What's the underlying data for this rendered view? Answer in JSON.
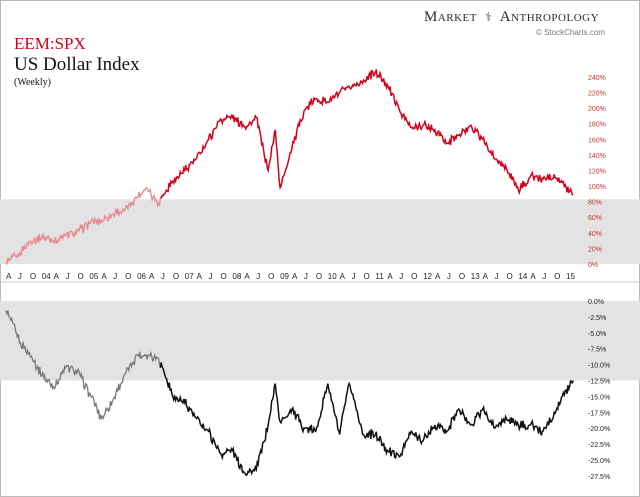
{
  "header": {
    "brand_left": "Market",
    "brand_glyph": "⚕",
    "brand_right": "Anthropology",
    "credit": "© StockCharts.com"
  },
  "chart_data": [
    {
      "type": "line",
      "title": "EEM:SPX",
      "subtitle": "US Dollar Index",
      "note": "(Weekly)",
      "color_recent": "#d0021b",
      "color_early": "#e8888f",
      "y_axis_side": "right",
      "ylim": [
        0,
        245
      ],
      "yticks": [
        0,
        20,
        40,
        60,
        80,
        100,
        120,
        140,
        160,
        180,
        200,
        220,
        240
      ],
      "ytick_labels": [
        "0%",
        "20%",
        "40%",
        "60%",
        "80%",
        "100%",
        "120%",
        "140%",
        "160%",
        "180%",
        "200%",
        "220%",
        "240%"
      ],
      "shaded_range": [
        0,
        83
      ],
      "x": [
        2003.25,
        2003.5,
        2003.75,
        2004.0,
        2004.25,
        2004.5,
        2004.75,
        2005.0,
        2005.25,
        2005.5,
        2005.75,
        2006.0,
        2006.2,
        2006.45,
        2006.55,
        2006.75,
        2007.0,
        2007.25,
        2007.5,
        2007.75,
        2008.0,
        2008.3,
        2008.5,
        2008.75,
        2008.9,
        2009.0,
        2009.25,
        2009.5,
        2009.75,
        2010.0,
        2010.25,
        2010.5,
        2010.75,
        2011.0,
        2011.25,
        2011.5,
        2011.75,
        2012.0,
        2012.25,
        2012.5,
        2012.75,
        2013.0,
        2013.25,
        2013.5,
        2013.75,
        2014.0,
        2014.25,
        2014.5,
        2014.75,
        2015.0,
        2015.15
      ],
      "y": [
        2,
        12,
        28,
        36,
        30,
        36,
        42,
        52,
        56,
        64,
        70,
        86,
        98,
        78,
        88,
        106,
        120,
        136,
        160,
        186,
        188,
        176,
        188,
        120,
        172,
        98,
        150,
        196,
        212,
        208,
        220,
        226,
        236,
        246,
        230,
        198,
        175,
        178,
        172,
        155,
        165,
        178,
        160,
        135,
        122,
        95,
        112,
        110,
        115,
        99,
        89
      ]
    },
    {
      "type": "line",
      "title": "US Dollar Index",
      "color_recent": "#111111",
      "color_early": "#7a7a7a",
      "y_axis_side": "right",
      "ylim": [
        -28,
        0
      ],
      "yticks": [
        0,
        -2.5,
        -5,
        -7.5,
        -10,
        -12.5,
        -15,
        -17.5,
        -20,
        -22.5,
        -25,
        -27.5
      ],
      "ytick_labels": [
        "0.0%",
        "-2.5%",
        "-5.0%",
        "-7.5%",
        "-10.0%",
        "-12.5%",
        "-15.0%",
        "-17.5%",
        "-20.0%",
        "-22.5%",
        "-25.0%",
        "-27.5%"
      ],
      "shaded_range": [
        -12.5,
        0
      ],
      "x": [
        2003.25,
        2003.35,
        2003.55,
        2003.8,
        2004.0,
        2004.25,
        2004.5,
        2004.75,
        2005.0,
        2005.25,
        2005.5,
        2005.75,
        2006.0,
        2006.25,
        2006.45,
        2006.75,
        2007.0,
        2007.25,
        2007.5,
        2007.75,
        2008.0,
        2008.25,
        2008.5,
        2008.75,
        2008.9,
        2009.0,
        2009.25,
        2009.5,
        2009.75,
        2010.0,
        2010.25,
        2010.45,
        2010.75,
        2011.0,
        2011.25,
        2011.5,
        2011.75,
        2012.0,
        2012.25,
        2012.5,
        2012.75,
        2013.0,
        2013.25,
        2013.5,
        2013.75,
        2014.0,
        2014.25,
        2014.5,
        2014.75,
        2015.0,
        2015.15
      ],
      "y": [
        -1.5,
        -3,
        -6.5,
        -9,
        -11.5,
        -13.5,
        -10.5,
        -11,
        -14.5,
        -18.5,
        -15.5,
        -11.5,
        -8.5,
        -8.5,
        -9,
        -15,
        -16,
        -18.5,
        -20.5,
        -24,
        -23.5,
        -27,
        -26.5,
        -19.5,
        -13,
        -19,
        -17,
        -20,
        -20.5,
        -13,
        -21,
        -13,
        -21,
        -21,
        -23.5,
        -24.5,
        -20.5,
        -22,
        -19.5,
        -20.5,
        -17,
        -19.5,
        -17,
        -20,
        -18.5,
        -19.5,
        -19.5,
        -20.5,
        -17.5,
        -14,
        -12.5
      ]
    }
  ],
  "x_axis": {
    "labels": [
      "A",
      "J",
      "O",
      "04",
      "A",
      "J",
      "O",
      "05",
      "A",
      "J",
      "O",
      "06",
      "A",
      "J",
      "O",
      "07",
      "A",
      "J",
      "O",
      "08",
      "A",
      "J",
      "O",
      "09",
      "A",
      "J",
      "O",
      "10",
      "A",
      "J",
      "O",
      "11",
      "A",
      "J",
      "O",
      "12",
      "A",
      "J",
      "O",
      "13",
      "A",
      "J",
      "O",
      "14",
      "A",
      "J",
      "O",
      "15"
    ],
    "start": 2003.25,
    "step": 0.25
  }
}
